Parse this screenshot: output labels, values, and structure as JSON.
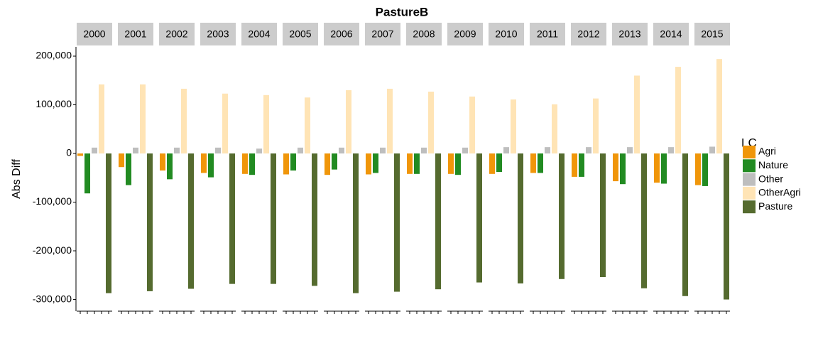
{
  "chart_data": {
    "type": "bar",
    "title": "PastureB",
    "y_label": "Abs Diff",
    "legend_title": "LC",
    "categories": [
      "2000",
      "2001",
      "2002",
      "2003",
      "2004",
      "2005",
      "2006",
      "2007",
      "2008",
      "2009",
      "2010",
      "2011",
      "2012",
      "2013",
      "2014",
      "2015"
    ],
    "series": [
      {
        "name": "Agri",
        "color": "#f0960a",
        "values": [
          -5000,
          -28000,
          -35000,
          -40000,
          -42000,
          -43000,
          -44000,
          -43000,
          -42000,
          -42000,
          -42000,
          -40000,
          -48000,
          -57000,
          -60000,
          -65000
        ]
      },
      {
        "name": "Nature",
        "color": "#228b22",
        "values": [
          -82000,
          -65000,
          -53000,
          -49000,
          -44000,
          -35000,
          -33000,
          -40000,
          -42000,
          -44000,
          -38000,
          -40000,
          -48000,
          -63000,
          -62000,
          -67000
        ]
      },
      {
        "name": "Other",
        "color": "#bebebe",
        "values": [
          12000,
          12000,
          12000,
          12000,
          10000,
          12000,
          12000,
          12000,
          12000,
          12000,
          13000,
          13000,
          13000,
          13000,
          13000,
          14000
        ]
      },
      {
        "name": "OtherAgri",
        "color": "#ffe4b5",
        "values": [
          142000,
          142000,
          133000,
          123000,
          120000,
          115000,
          130000,
          133000,
          127000,
          117000,
          111000,
          101000,
          113000,
          160000,
          178000,
          194000
        ]
      },
      {
        "name": "Pasture",
        "color": "#556b2f",
        "values": [
          -287000,
          -283000,
          -278000,
          -268000,
          -268000,
          -272000,
          -287000,
          -284000,
          -279000,
          -265000,
          -267000,
          -258000,
          -254000,
          -277000,
          -293000,
          -300000
        ]
      }
    ],
    "ylim": [
      -324000,
      219000
    ],
    "yticks": [
      {
        "value": -300000,
        "label": "-300,000"
      },
      {
        "value": -200000,
        "label": "-200,000"
      },
      {
        "value": -100000,
        "label": "-100,000"
      },
      0,
      {
        "value": 100000,
        "label": "100,000"
      },
      {
        "value": 200000,
        "label": "200,000"
      }
    ],
    "grid": false,
    "legend": "right",
    "facet_strip_color": "#cccccc"
  }
}
